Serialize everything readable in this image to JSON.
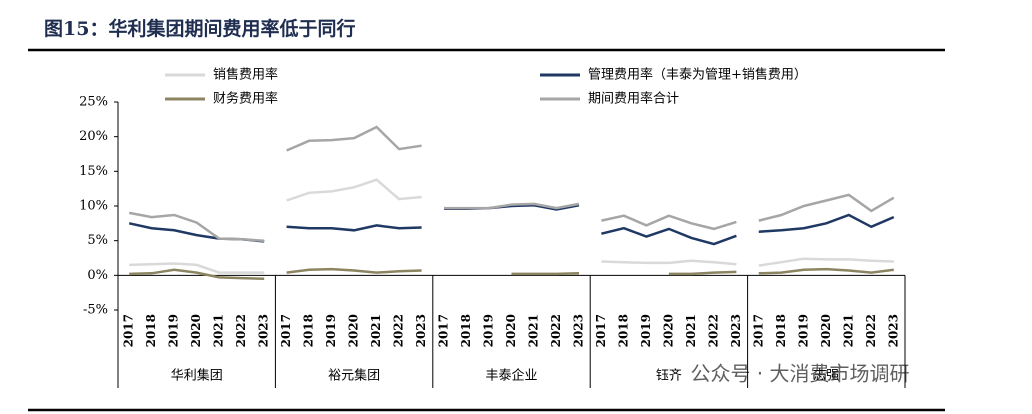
{
  "chart_data": {
    "type": "line",
    "title": "图15：华利集团期间费用率低于同行",
    "categories": [
      "2017",
      "2018",
      "2019",
      "2020",
      "2021",
      "2022",
      "2023",
      "2017",
      "2018",
      "2019",
      "2020",
      "2021",
      "2022",
      "2023",
      "2017",
      "2018",
      "2019",
      "2020",
      "2021",
      "2022",
      "2023",
      "2017",
      "2018",
      "2019",
      "2020",
      "2021",
      "2022",
      "2023",
      "2017",
      "2018",
      "2019",
      "2020",
      "2021",
      "2022",
      "2023"
    ],
    "groups": [
      "华利集团",
      "裕元集团",
      "丰泰企业",
      "钰齐",
      "志强"
    ],
    "series": [
      {
        "name": "销售费用率",
        "color": "#d9d9d9",
        "values": [
          1.5,
          1.6,
          1.7,
          1.5,
          0.4,
          0.4,
          0.4,
          10.8,
          11.9,
          12.1,
          12.7,
          13.8,
          11.0,
          11.3,
          null,
          null,
          null,
          null,
          null,
          null,
          null,
          2.0,
          1.9,
          1.8,
          1.8,
          2.1,
          1.9,
          1.6,
          1.4,
          1.9,
          2.4,
          2.3,
          2.3,
          2.1,
          2.0
        ]
      },
      {
        "name": "管理费用率（丰泰为管理+销售费用）",
        "color": "#1f3864",
        "values": [
          7.5,
          6.8,
          6.5,
          5.8,
          5.3,
          5.2,
          4.9,
          7.0,
          6.8,
          6.8,
          6.5,
          7.2,
          6.8,
          6.9,
          9.6,
          9.6,
          9.7,
          10.0,
          10.1,
          9.5,
          10.1,
          6.0,
          6.8,
          5.6,
          6.7,
          5.4,
          4.5,
          5.7,
          6.3,
          6.5,
          6.8,
          7.5,
          8.7,
          7.0,
          8.4
        ]
      },
      {
        "name": "财务费用率",
        "color": "#8c8461",
        "values": [
          0.2,
          0.3,
          0.8,
          0.4,
          -0.3,
          -0.4,
          -0.5,
          0.4,
          0.8,
          0.9,
          0.7,
          0.4,
          0.6,
          0.7,
          null,
          null,
          null,
          0.2,
          0.2,
          0.2,
          0.3,
          null,
          null,
          null,
          0.2,
          0.2,
          0.4,
          0.5,
          0.3,
          0.4,
          0.8,
          0.9,
          0.7,
          0.4,
          0.8
        ]
      },
      {
        "name": "期间费用率合计",
        "color": "#a6a6a6",
        "values": [
          9.0,
          8.4,
          8.7,
          7.6,
          5.3,
          5.2,
          5.0,
          18.0,
          19.4,
          19.5,
          19.8,
          21.4,
          18.2,
          18.7,
          9.7,
          9.7,
          9.7,
          10.2,
          10.3,
          9.7,
          10.3,
          7.9,
          8.6,
          7.2,
          8.6,
          7.5,
          6.7,
          7.7,
          7.9,
          8.7,
          10.0,
          10.8,
          11.6,
          9.3,
          11.2
        ]
      }
    ],
    "ylim": [
      -5,
      25
    ],
    "yticks": [
      {
        "value": -5,
        "label": "-5%"
      },
      {
        "value": 0,
        "label": "0%"
      },
      {
        "value": 5,
        "label": "5%"
      },
      {
        "value": 10,
        "label": "10%"
      },
      {
        "value": 15,
        "label": "15%"
      },
      {
        "value": 20,
        "label": "20%"
      },
      {
        "value": 25,
        "label": "25%"
      }
    ],
    "watermark": "公众号 · 大消费市场调研"
  }
}
